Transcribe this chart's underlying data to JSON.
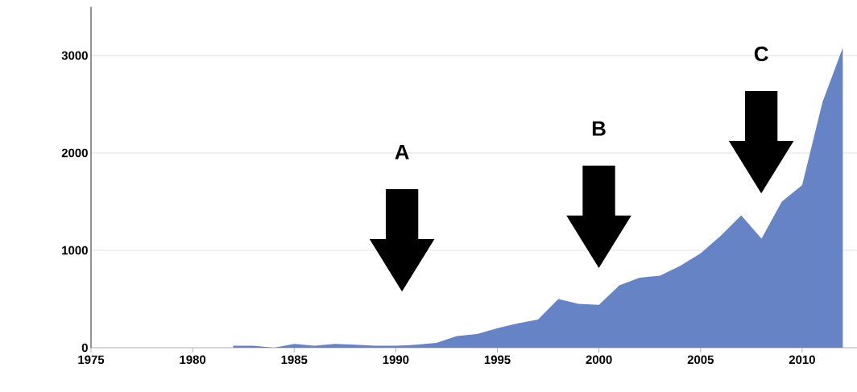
{
  "chart_data": {
    "type": "area",
    "x": [
      1982,
      1983,
      1984,
      1985,
      1986,
      1987,
      1988,
      1989,
      1990,
      1991,
      1992,
      1993,
      1994,
      1995,
      1996,
      1997,
      1998,
      1999,
      2000,
      2001,
      2002,
      2003,
      2004,
      2005,
      2006,
      2007,
      2008,
      2009,
      2010,
      2011,
      2012
    ],
    "values": [
      20,
      20,
      0,
      40,
      20,
      40,
      30,
      20,
      20,
      30,
      50,
      120,
      140,
      200,
      250,
      290,
      500,
      450,
      440,
      640,
      720,
      740,
      840,
      970,
      1150,
      1360,
      1120,
      1500,
      1670,
      2520,
      3080
    ],
    "color": "#6683c6",
    "xlim": [
      1975,
      2012.7
    ],
    "ylim": [
      0,
      3500
    ],
    "xticks": [
      1975,
      1980,
      1985,
      1990,
      1995,
      2000,
      2005,
      2010
    ],
    "yticks": [
      0,
      1000,
      2000,
      3000
    ],
    "grid": "y",
    "annotations": [
      "A",
      "B",
      "C"
    ]
  }
}
